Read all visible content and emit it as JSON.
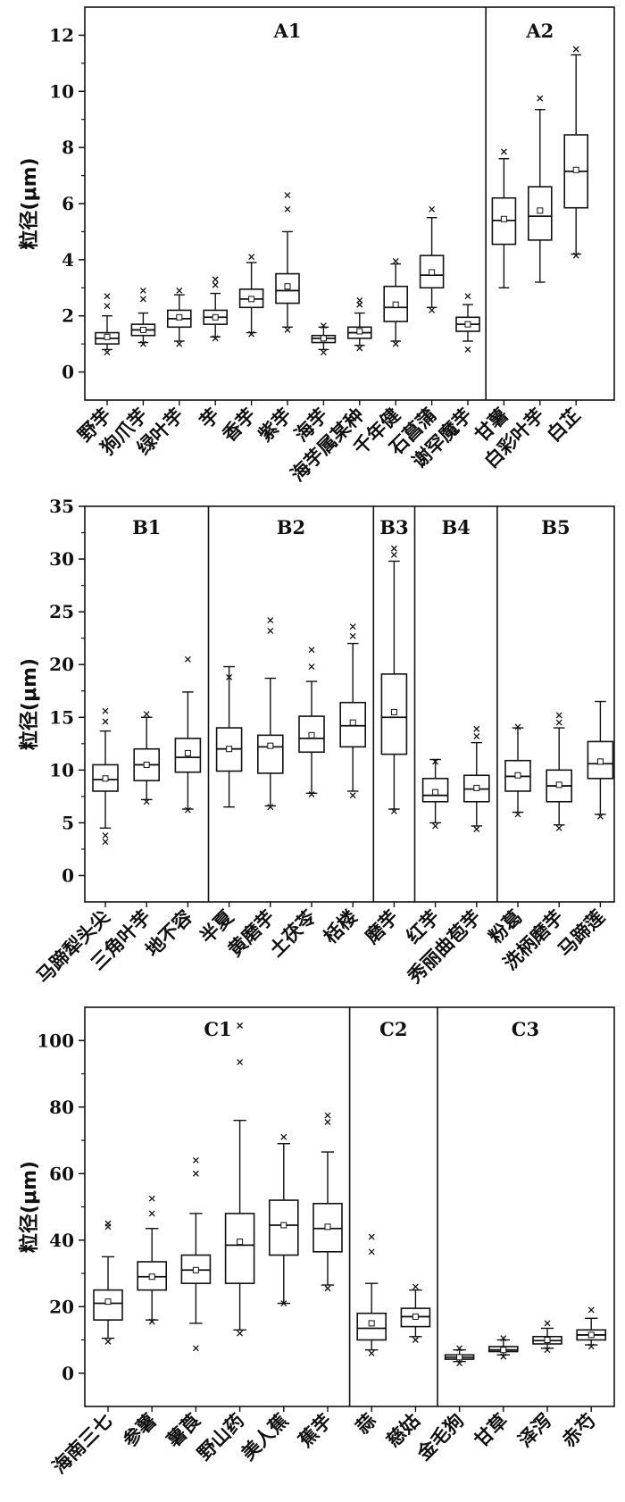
{
  "chart_data": [
    {
      "type": "box",
      "ylabel": "粒径(μm)",
      "ylim": [
        -1,
        13
      ],
      "yticks": [
        0,
        2,
        4,
        6,
        8,
        10,
        12
      ],
      "groups": [
        {
          "label": "A1",
          "start": 0,
          "end": 10
        },
        {
          "label": "A2",
          "start": 11,
          "end": 13
        }
      ],
      "categories": [
        "野芋",
        "狗爪芋",
        "绿叶芋",
        "芋",
        "香芋",
        "紫芋",
        "海芋",
        "海芋属某种",
        "千年健",
        "石菖蒲",
        "谢罕魔芋",
        "甘薯",
        "白彩叶芋",
        "白芷"
      ],
      "boxes": [
        {
          "min": 0.8,
          "q1": 1.0,
          "med": 1.2,
          "q3": 1.4,
          "max": 2.0,
          "mean": 1.25,
          "outliers": [
            0.7,
            2.35,
            2.7
          ]
        },
        {
          "min": 1.05,
          "q1": 1.3,
          "med": 1.5,
          "q3": 1.7,
          "max": 2.1,
          "mean": 1.5,
          "outliers": [
            1.0,
            2.6,
            2.9
          ]
        },
        {
          "min": 1.1,
          "q1": 1.6,
          "med": 1.9,
          "q3": 2.2,
          "max": 2.75,
          "mean": 1.95,
          "outliers": [
            1.0,
            2.9
          ]
        },
        {
          "min": 1.25,
          "q1": 1.7,
          "med": 1.95,
          "q3": 2.2,
          "max": 2.8,
          "mean": 1.95,
          "outliers": [
            1.2,
            3.1,
            3.3
          ]
        },
        {
          "min": 1.4,
          "q1": 2.3,
          "med": 2.6,
          "q3": 2.95,
          "max": 3.9,
          "mean": 2.6,
          "outliers": [
            1.35,
            4.1
          ]
        },
        {
          "min": 1.6,
          "q1": 2.45,
          "med": 2.9,
          "q3": 3.5,
          "max": 5.0,
          "mean": 3.05,
          "outliers": [
            1.5,
            5.8,
            6.3
          ]
        },
        {
          "min": 0.8,
          "q1": 1.05,
          "med": 1.2,
          "q3": 1.3,
          "max": 1.6,
          "mean": 1.2,
          "outliers": [
            0.7,
            1.65
          ]
        },
        {
          "min": 0.95,
          "q1": 1.2,
          "med": 1.4,
          "q3": 1.6,
          "max": 2.1,
          "mean": 1.45,
          "outliers": [
            0.85,
            2.4,
            2.55
          ]
        },
        {
          "min": 1.1,
          "q1": 1.8,
          "med": 2.3,
          "q3": 3.05,
          "max": 3.85,
          "mean": 2.4,
          "outliers": [
            1.0,
            3.95
          ]
        },
        {
          "min": 2.3,
          "q1": 3.0,
          "med": 3.45,
          "q3": 4.15,
          "max": 5.5,
          "mean": 3.55,
          "outliers": [
            2.2,
            5.8
          ]
        },
        {
          "min": 1.1,
          "q1": 1.45,
          "med": 1.7,
          "q3": 1.95,
          "max": 2.4,
          "mean": 1.7,
          "outliers": [
            0.8,
            2.7
          ]
        },
        {
          "min": 3.0,
          "q1": 4.55,
          "med": 5.4,
          "q3": 6.2,
          "max": 7.6,
          "mean": 5.45,
          "outliers": [
            7.85
          ]
        },
        {
          "min": 3.2,
          "q1": 4.7,
          "med": 5.55,
          "q3": 6.6,
          "max": 9.35,
          "mean": 5.75,
          "outliers": [
            9.75
          ]
        },
        {
          "min": 4.2,
          "q1": 5.85,
          "med": 7.15,
          "q3": 8.45,
          "max": 11.3,
          "mean": 7.2,
          "outliers": [
            4.15,
            11.5
          ]
        }
      ]
    },
    {
      "type": "box",
      "ylabel": "粒径(μm)",
      "ylim": [
        -2.5,
        35
      ],
      "yticks": [
        0,
        5,
        10,
        15,
        20,
        25,
        30,
        35
      ],
      "groups": [
        {
          "label": "B1",
          "start": 0,
          "end": 2
        },
        {
          "label": "B2",
          "start": 3,
          "end": 6
        },
        {
          "label": "B3",
          "start": 7,
          "end": 7
        },
        {
          "label": "B4",
          "start": 8,
          "end": 9
        },
        {
          "label": "B5",
          "start": 10,
          "end": 12
        }
      ],
      "categories": [
        "马蹄犁头尖",
        "三角叶芋",
        "地不容",
        "半夏",
        "黄磨芋",
        "土茯苓",
        "栝楼",
        "磨芋",
        "红芋",
        "秀丽曲苞芋",
        "粉葛",
        "洗柄磨芋",
        "马蹄莲"
      ],
      "boxes": [
        {
          "min": 4.5,
          "q1": 8.0,
          "med": 9.1,
          "q3": 10.5,
          "max": 13.7,
          "mean": 9.2,
          "outliers": [
            3.2,
            3.8,
            14.6,
            15.6
          ]
        },
        {
          "min": 7.2,
          "q1": 9.0,
          "med": 10.5,
          "q3": 12.0,
          "max": 15.0,
          "mean": 10.5,
          "outliers": [
            7.0,
            15.3
          ]
        },
        {
          "min": 6.3,
          "q1": 9.8,
          "med": 11.2,
          "q3": 13.0,
          "max": 17.4,
          "mean": 11.6,
          "outliers": [
            6.2,
            20.5
          ]
        },
        {
          "min": 6.5,
          "q1": 9.9,
          "med": 12.0,
          "q3": 14.0,
          "max": 19.8,
          "mean": 12.0,
          "outliers": [
            18.8
          ]
        },
        {
          "min": 6.6,
          "q1": 9.7,
          "med": 12.2,
          "q3": 13.3,
          "max": 18.7,
          "mean": 12.3,
          "outliers": [
            6.5,
            23.2,
            24.2
          ]
        },
        {
          "min": 7.8,
          "q1": 11.7,
          "med": 13.0,
          "q3": 15.1,
          "max": 18.4,
          "mean": 13.3,
          "outliers": [
            7.7,
            19.8,
            21.4
          ]
        },
        {
          "min": 8.0,
          "q1": 12.2,
          "med": 14.2,
          "q3": 16.4,
          "max": 22.0,
          "mean": 14.5,
          "outliers": [
            7.6,
            22.7,
            23.6
          ]
        },
        {
          "min": 6.3,
          "q1": 11.5,
          "med": 15.0,
          "q3": 19.1,
          "max": 29.8,
          "mean": 15.5,
          "outliers": [
            6.1,
            30.4,
            31.0
          ]
        },
        {
          "min": 5.0,
          "q1": 7.0,
          "med": 7.6,
          "q3": 9.2,
          "max": 11.0,
          "mean": 7.9,
          "outliers": [
            4.7,
            10.8
          ]
        },
        {
          "min": 4.7,
          "q1": 7.0,
          "med": 8.2,
          "q3": 9.5,
          "max": 12.6,
          "mean": 8.3,
          "outliers": [
            4.4,
            13.2,
            13.9
          ]
        },
        {
          "min": 6.0,
          "q1": 8.0,
          "med": 9.4,
          "q3": 10.9,
          "max": 14.0,
          "mean": 9.5,
          "outliers": [
            5.8,
            14.1
          ]
        },
        {
          "min": 4.8,
          "q1": 7.0,
          "med": 8.5,
          "q3": 10.0,
          "max": 14.0,
          "mean": 8.6,
          "outliers": [
            4.5,
            14.5,
            15.2
          ]
        },
        {
          "min": 5.8,
          "q1": 9.2,
          "med": 10.6,
          "q3": 12.7,
          "max": 16.5,
          "mean": 10.8,
          "outliers": [
            5.6
          ]
        }
      ]
    },
    {
      "type": "box",
      "ylabel": "粒径(μm)",
      "ylim": [
        -10,
        110
      ],
      "yticks": [
        0,
        20,
        40,
        60,
        80,
        100
      ],
      "groups": [
        {
          "label": "C1",
          "start": 0,
          "end": 5
        },
        {
          "label": "C2",
          "start": 6,
          "end": 7
        },
        {
          "label": "C3",
          "start": 8,
          "end": 11
        }
      ],
      "categories": [
        "海南三七",
        "参薯",
        "薯莨",
        "野山药",
        "美人蕉",
        "蕉芋",
        "蒜",
        "慈姑",
        "金毛狗",
        "甘草",
        "泽泻",
        "赤芍"
      ],
      "boxes": [
        {
          "min": 10.5,
          "q1": 16.0,
          "med": 21.0,
          "q3": 25.0,
          "max": 35.0,
          "mean": 21.5,
          "outliers": [
            9.5,
            44.0,
            45.0
          ]
        },
        {
          "min": 16.0,
          "q1": 25.0,
          "med": 29.0,
          "q3": 33.5,
          "max": 43.5,
          "mean": 29.0,
          "outliers": [
            15.5,
            48.0,
            52.5
          ]
        },
        {
          "min": 15.0,
          "q1": 27.0,
          "med": 31.0,
          "q3": 35.5,
          "max": 48.0,
          "mean": 31.0,
          "outliers": [
            7.5,
            60.0,
            64.0
          ]
        },
        {
          "min": 13.0,
          "q1": 27.0,
          "med": 38.5,
          "q3": 48.0,
          "max": 76.0,
          "mean": 39.5,
          "outliers": [
            12.0,
            93.5,
            104.5
          ]
        },
        {
          "min": 21.0,
          "q1": 35.5,
          "med": 44.5,
          "q3": 52.0,
          "max": 69.0,
          "mean": 44.5,
          "outliers": [
            21.0,
            71.0
          ]
        },
        {
          "min": 26.5,
          "q1": 36.5,
          "med": 43.5,
          "q3": 51.0,
          "max": 66.5,
          "mean": 44.0,
          "outliers": [
            25.5,
            75.5,
            77.5
          ]
        },
        {
          "min": 7.0,
          "q1": 10.0,
          "med": 13.5,
          "q3": 18.0,
          "max": 27.0,
          "mean": 15.0,
          "outliers": [
            6.0,
            36.5,
            41.0
          ]
        },
        {
          "min": 11.0,
          "q1": 14.0,
          "med": 17.0,
          "q3": 19.5,
          "max": 25.0,
          "mean": 17.0,
          "outliers": [
            10.0,
            26.0
          ]
        },
        {
          "min": 3.5,
          "q1": 4.2,
          "med": 4.8,
          "q3": 5.5,
          "max": 7.0,
          "mean": 4.8,
          "outliers": [
            3.0,
            7.5
          ]
        },
        {
          "min": 5.5,
          "q1": 6.5,
          "med": 7.0,
          "q3": 8.0,
          "max": 10.0,
          "mean": 7.0,
          "outliers": [
            5.0,
            10.5
          ]
        },
        {
          "min": 7.5,
          "q1": 8.8,
          "med": 9.8,
          "q3": 11.0,
          "max": 13.5,
          "mean": 10.0,
          "outliers": [
            7.0,
            15.0
          ]
        },
        {
          "min": 8.5,
          "q1": 10.0,
          "med": 11.5,
          "q3": 13.0,
          "max": 16.5,
          "mean": 11.5,
          "outliers": [
            8.0,
            19.0
          ]
        }
      ]
    }
  ]
}
